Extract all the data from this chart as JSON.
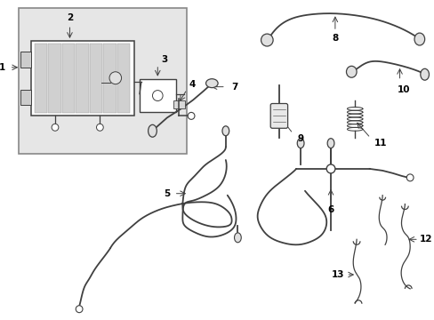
{
  "bg_color": "#ffffff",
  "line_color": "#404040",
  "label_color": "#000000",
  "box_bg": "#e6e6e6",
  "box_border": "#555555",
  "lw_main": 1.3,
  "lw_thin": 0.9,
  "fs": 7.5
}
